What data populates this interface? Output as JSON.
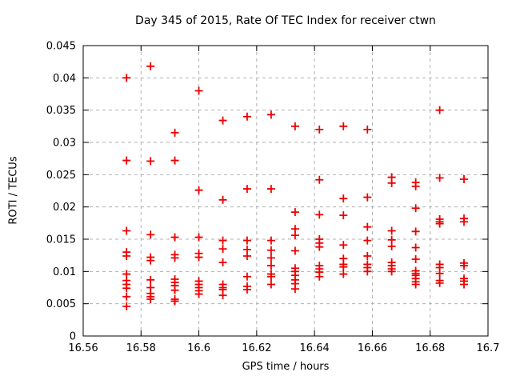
{
  "chart_data": {
    "type": "scatter",
    "title": "Day 345 of 2015, Rate Of TEC Index for receiver ctwn",
    "xlabel": "GPS time / hours",
    "ylabel": "ROTI / TECUs",
    "xlim": [
      16.56,
      16.7
    ],
    "ylim": [
      0,
      0.045
    ],
    "grid": true,
    "legend": "none",
    "marker": "plus",
    "colors": {
      "marker": "#ee0000",
      "grid": "#b0b0b0",
      "axis": "#000000",
      "background": "#ffffff"
    },
    "xticks": [
      {
        "v": 16.56,
        "label": "16.56"
      },
      {
        "v": 16.58,
        "label": "16.58"
      },
      {
        "v": 16.6,
        "label": "16.6"
      },
      {
        "v": 16.62,
        "label": "16.62"
      },
      {
        "v": 16.64,
        "label": "16.64"
      },
      {
        "v": 16.66,
        "label": "16.66"
      },
      {
        "v": 16.68,
        "label": "16.68"
      },
      {
        "v": 16.7,
        "label": "16.7"
      }
    ],
    "yticks": [
      {
        "v": 0,
        "label": "0"
      },
      {
        "v": 0.005,
        "label": "0.005"
      },
      {
        "v": 0.01,
        "label": "0.01"
      },
      {
        "v": 0.015,
        "label": "0.015"
      },
      {
        "v": 0.02,
        "label": "0.02"
      },
      {
        "v": 0.025,
        "label": "0.025"
      },
      {
        "v": 0.03,
        "label": "0.03"
      },
      {
        "v": 0.035,
        "label": "0.035"
      },
      {
        "v": 0.04,
        "label": "0.04"
      },
      {
        "v": 0.045,
        "label": "0.045"
      }
    ],
    "series": [
      {
        "name": "ROTI",
        "epochs": [
          {
            "t": 16.575,
            "values": [
              0.04,
              0.0272,
              0.0163,
              0.013,
              0.0124,
              0.0096,
              0.0086,
              0.008,
              0.0074,
              0.0061,
              0.0046
            ]
          },
          {
            "t": 16.5833,
            "values": [
              0.0418,
              0.0271,
              0.0157,
              0.0122,
              0.0117,
              0.0087,
              0.0075,
              0.0066,
              0.0061,
              0.0057
            ]
          },
          {
            "t": 16.5917,
            "values": [
              0.0315,
              0.0272,
              0.0153,
              0.0126,
              0.0121,
              0.0088,
              0.0083,
              0.0078,
              0.0071,
              0.0057,
              0.0054
            ]
          },
          {
            "t": 16.6,
            "values": [
              0.038,
              0.0226,
              0.0153,
              0.0128,
              0.0122,
              0.0085,
              0.008,
              0.0075,
              0.007,
              0.0065
            ]
          },
          {
            "t": 16.6083,
            "values": [
              0.0334,
              0.0211,
              0.0148,
              0.0135,
              0.0114,
              0.008,
              0.0075,
              0.0072,
              0.0063
            ]
          },
          {
            "t": 16.6167,
            "values": [
              0.034,
              0.0228,
              0.0148,
              0.0134,
              0.0124,
              0.0092,
              0.0077,
              0.0072
            ]
          },
          {
            "t": 16.625,
            "values": [
              0.0343,
              0.0228,
              0.0148,
              0.0133,
              0.0121,
              0.0109,
              0.0096,
              0.0092,
              0.008
            ]
          },
          {
            "t": 16.6333,
            "values": [
              0.0325,
              0.0192,
              0.0166,
              0.0156,
              0.0132,
              0.0105,
              0.01,
              0.0094,
              0.0087,
              0.0081,
              0.0073
            ]
          },
          {
            "t": 16.6417,
            "values": [
              0.032,
              0.0242,
              0.0188,
              0.015,
              0.0144,
              0.0138,
              0.0109,
              0.0104,
              0.0099,
              0.0092
            ]
          },
          {
            "t": 16.65,
            "values": [
              0.0325,
              0.0213,
              0.0187,
              0.0141,
              0.012,
              0.0111,
              0.0107,
              0.0096
            ]
          },
          {
            "t": 16.6583,
            "values": [
              0.032,
              0.0215,
              0.0169,
              0.0148,
              0.0124,
              0.0111,
              0.0106,
              0.01
            ]
          },
          {
            "t": 16.6667,
            "values": [
              0.0246,
              0.0237,
              0.0163,
              0.0149,
              0.0139,
              0.0114,
              0.0109,
              0.0104,
              0.01
            ]
          },
          {
            "t": 16.675,
            "values": [
              0.0238,
              0.0232,
              0.0198,
              0.0162,
              0.0137,
              0.0119,
              0.0101,
              0.0097,
              0.0094,
              0.0089,
              0.0084,
              0.008
            ]
          },
          {
            "t": 16.6833,
            "values": [
              0.035,
              0.0245,
              0.0181,
              0.0177,
              0.0174,
              0.0111,
              0.0106,
              0.0097,
              0.0086,
              0.0082
            ]
          },
          {
            "t": 16.6917,
            "values": [
              0.0243,
              0.0182,
              0.0177,
              0.0113,
              0.0109,
              0.0089,
              0.0085,
              0.008
            ]
          }
        ]
      }
    ]
  }
}
